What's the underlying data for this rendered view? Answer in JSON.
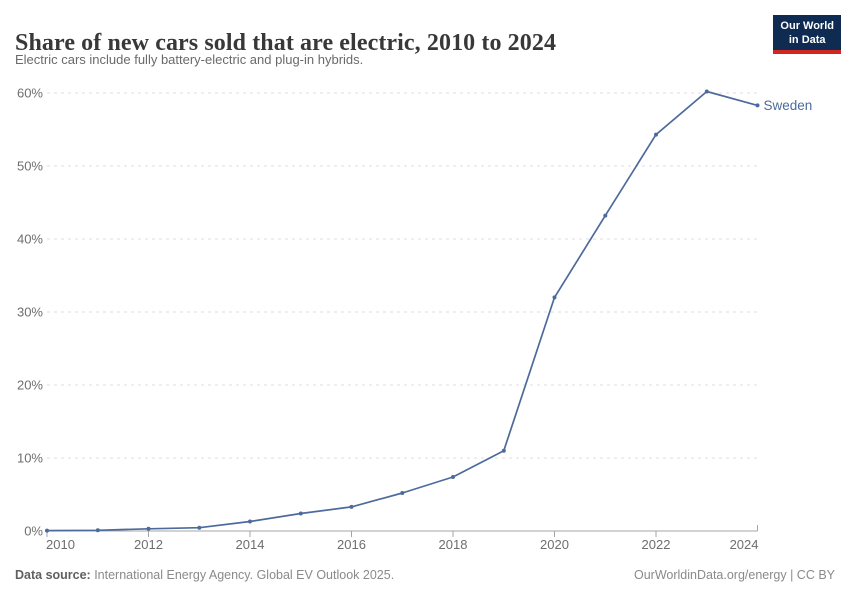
{
  "header": {
    "title": "Share of new cars sold that are electric, 2010 to 2024",
    "subtitle": "Electric cars include fully battery-electric and plug-in hybrids.",
    "logo": {
      "line1": "Our World",
      "line2": "in Data",
      "bg_color": "#0f2b52",
      "accent_color": "#d0281e"
    }
  },
  "chart_data": {
    "type": "line",
    "title": "Share of new cars sold that are electric, 2010 to 2024",
    "subtitle": "Electric cars include fully battery-electric and plug-in hybrids.",
    "x": [
      2010,
      2011,
      2012,
      2013,
      2014,
      2015,
      2016,
      2017,
      2018,
      2019,
      2020,
      2021,
      2022,
      2023,
      2024
    ],
    "series": [
      {
        "name": "Sweden",
        "color": "#4c6a9c",
        "values": [
          0.05,
          0.1,
          0.3,
          0.45,
          1.3,
          2.4,
          3.3,
          5.2,
          7.4,
          11,
          32,
          43.2,
          54.3,
          60.2,
          58.3
        ]
      }
    ],
    "x_range": [
      2010,
      2024
    ],
    "y_range": [
      0,
      60
    ],
    "y_ticks": [
      0,
      10,
      20,
      30,
      40,
      50,
      60
    ],
    "y_tick_suffix": "%",
    "x_ticks": [
      2010,
      2012,
      2014,
      2016,
      2018,
      2020,
      2022,
      2024
    ],
    "grid": "horizontal-dashed",
    "legend": "end-of-line-label",
    "xlabel": "",
    "ylabel": ""
  },
  "footer": {
    "data_source_label": "Data source:",
    "data_source_text": " International Energy Agency. Global EV Outlook 2025.",
    "right_text": "OurWorldinData.org/energy | CC BY"
  },
  "colors": {
    "line": "#4c6a9c",
    "gridline": "#dcdcdc",
    "axis": "#a5a5a5",
    "tick_text": "#6e6e6e"
  }
}
